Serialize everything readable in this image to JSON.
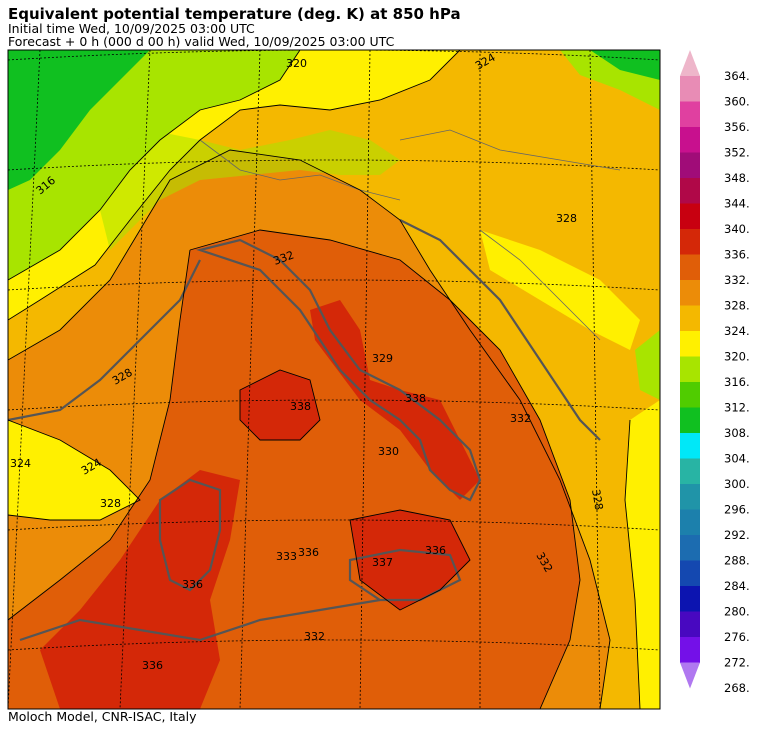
{
  "header": {
    "title": "Equivalent potential temperature (deg. K) at 850 hPa",
    "initial_time": "Initial time  Wed, 10/09/2025  03:00 UTC",
    "forecast": "Forecast  +   0 h  (000 d 00 h)  valid Wed, 10/09/2025 03:00 UTC"
  },
  "footer": {
    "credit": "Moloch Model, CNR-ISAC, Italy"
  },
  "colorbar": {
    "levels": [
      "364.",
      "360.",
      "356.",
      "352.",
      "348.",
      "344.",
      "340.",
      "336.",
      "332.",
      "328.",
      "324.",
      "320.",
      "316.",
      "312.",
      "308.",
      "304.",
      "300.",
      "296.",
      "292.",
      "288.",
      "284.",
      "280.",
      "276.",
      "272.",
      "268."
    ],
    "colors": [
      "#eeb6ca",
      "#e88cb5",
      "#e040a0",
      "#c8108e",
      "#a00c78",
      "#b00848",
      "#c80010",
      "#d42808",
      "#e05e08",
      "#ec8c08",
      "#f4b800",
      "#fff000",
      "#a8e400",
      "#50cc00",
      "#10c020",
      "#00e8f8",
      "#28b4a4",
      "#2094a8",
      "#1c80ac",
      "#1c6cb0",
      "#1448b0",
      "#0c14b0",
      "#4808c0",
      "#7410e8",
      "#b078f0"
    ]
  },
  "contour_labels": [
    {
      "text": "320"
    },
    {
      "text": "324"
    },
    {
      "text": "316"
    },
    {
      "text": "328"
    },
    {
      "text": "332"
    },
    {
      "text": "336"
    },
    {
      "text": "338"
    },
    {
      "text": "329"
    },
    {
      "text": "330"
    },
    {
      "text": "333"
    },
    {
      "text": "337"
    },
    {
      "text": "328"
    },
    {
      "text": "324"
    },
    {
      "text": "332"
    },
    {
      "text": "336"
    },
    {
      "text": "328"
    },
    {
      "text": "332"
    },
    {
      "text": "336"
    },
    {
      "text": "332"
    },
    {
      "text": "328"
    },
    {
      "text": "324"
    },
    {
      "text": "336"
    },
    {
      "text": "338"
    }
  ]
}
